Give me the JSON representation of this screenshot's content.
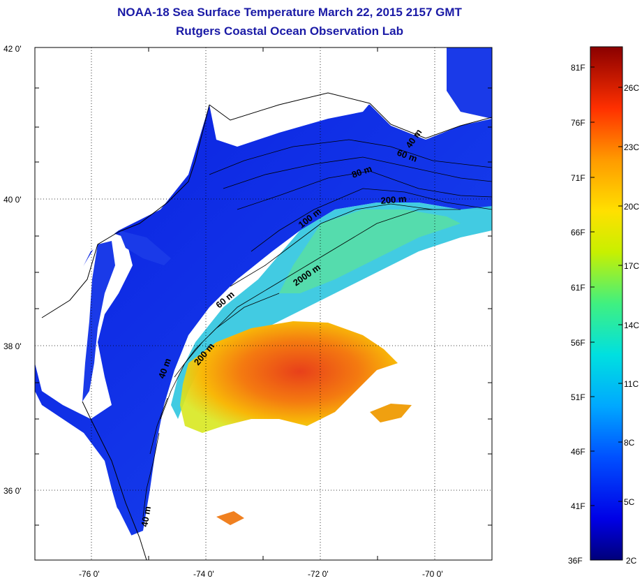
{
  "title": "NOAA-18 Sea Surface Temperature March 22, 2015 2157 GMT",
  "subtitle": "Rutgers Coastal Ocean Observation Lab",
  "lat_labels": [
    "42 0'",
    "40 0'",
    "38 0'",
    "36 0'"
  ],
  "lon_labels": [
    "-76 0'",
    "-74 0'",
    "-72 0'",
    "-70 0'"
  ],
  "isobaths": [
    "40 m",
    "60 m",
    "80 m",
    "200 m",
    "100 m",
    "2000 m",
    "60 m",
    "200 m",
    "40 m",
    "40 m"
  ],
  "colorbar": {
    "fahrenheit": [
      "81F",
      "76F",
      "71F",
      "66F",
      "61F",
      "56F",
      "51F",
      "46F",
      "41F",
      "36F"
    ],
    "celsius": [
      "26C",
      "23C",
      "20C",
      "17C",
      "14C",
      "11C",
      "8C",
      "5C",
      "2C"
    ]
  },
  "colors": {
    "title": "#1a1aa6",
    "land": "#ffffff",
    "cold": "#0a1ee0",
    "warm": "#e8401a"
  }
}
